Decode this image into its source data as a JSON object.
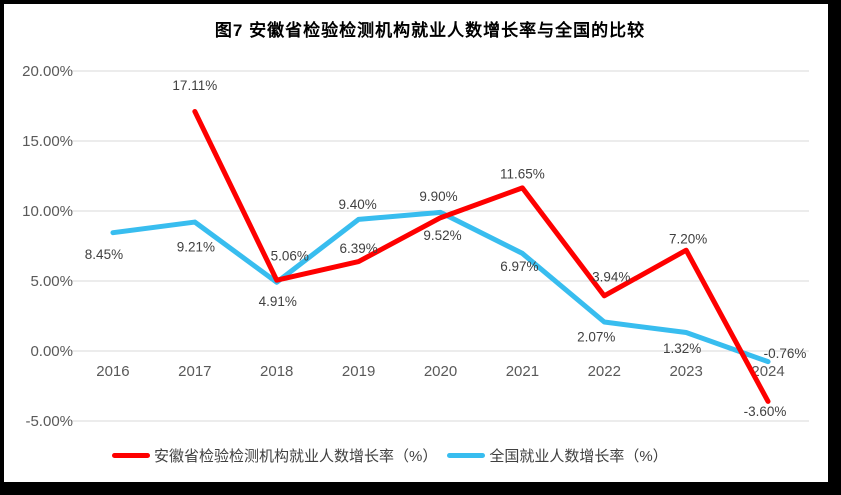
{
  "chart_data": {
    "type": "line",
    "title": "图7  安徽省检验检测机构就业人数增长率与全国的比较",
    "categories": [
      "2016",
      "2017",
      "2018",
      "2019",
      "2020",
      "2021",
      "2022",
      "2023",
      "2024"
    ],
    "series": [
      {
        "name": "安徽省检验检测机构就业人数增长率（%）",
        "color": "#FE0000",
        "values": [
          null,
          17.11,
          5.06,
          6.39,
          9.52,
          11.65,
          3.94,
          7.2,
          -3.6
        ],
        "label_offsets": [
          null,
          [
            0,
            -26
          ],
          [
            13,
            -24
          ],
          [
            0,
            -13
          ],
          [
            2,
            18
          ],
          [
            0,
            -14
          ],
          [
            7,
            -19
          ],
          [
            2,
            -11
          ],
          [
            -3,
            10
          ]
        ]
      },
      {
        "name": "全国就业人数增长率（%）",
        "color": "#38BDEF",
        "values": [
          8.45,
          9.21,
          4.91,
          9.4,
          9.9,
          6.97,
          2.07,
          1.32,
          -0.76
        ],
        "label_offsets": [
          [
            -9,
            22
          ],
          [
            1,
            25
          ],
          [
            1,
            19
          ],
          [
            -1,
            -15
          ],
          [
            -2,
            -16
          ],
          [
            -3,
            13
          ],
          [
            -8,
            15
          ],
          [
            -4,
            16
          ],
          [
            17,
            -8
          ]
        ]
      }
    ],
    "ylim": [
      -5,
      20
    ],
    "ytick_step": 5,
    "ytick_labels": [
      "20.00%",
      "15.00%",
      "10.00%",
      "5.00%",
      "0.00%",
      "-5.00%"
    ],
    "value_label_format": "0.00%",
    "grid": true,
    "legend_position": "bottom",
    "colors": {
      "grid": "#D9D9D9",
      "axis_text": "#595959",
      "data_label": "#404040",
      "title_text": "#000000"
    }
  }
}
